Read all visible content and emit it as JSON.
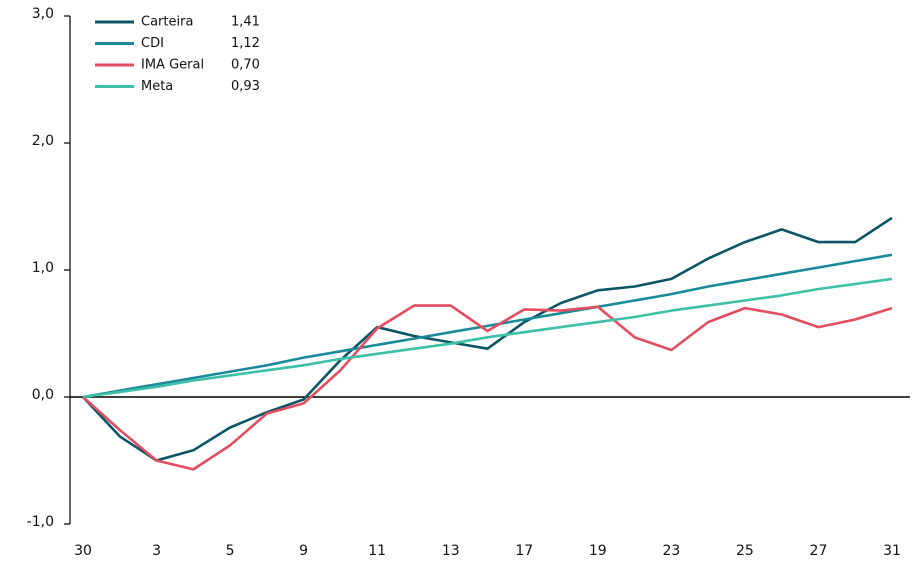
{
  "chart_data": {
    "type": "line",
    "categories": [
      "30",
      null,
      "3",
      null,
      "5",
      null,
      "9",
      null,
      "11",
      null,
      "13",
      null,
      "17",
      null,
      "19",
      null,
      "23",
      null,
      "25",
      null,
      "27",
      null,
      "31"
    ],
    "series": [
      {
        "name": "Carteira",
        "legend_value": "1,41",
        "color": "#0b5566",
        "values": [
          0,
          -0.31,
          -0.5,
          -0.42,
          -0.24,
          -0.12,
          -0.02,
          0.29,
          0.55,
          0.48,
          0.43,
          0.38,
          0.59,
          0.74,
          0.84,
          0.87,
          0.93,
          1.09,
          1.22,
          1.32,
          1.22,
          1.22,
          1.41
        ]
      },
      {
        "name": "CDI",
        "legend_value": "1,12",
        "color": "#1a8a9a",
        "values": [
          0,
          0.05,
          0.1,
          0.15,
          0.2,
          0.25,
          0.31,
          0.36,
          0.41,
          0.46,
          0.51,
          0.56,
          0.61,
          0.66,
          0.71,
          0.76,
          0.81,
          0.87,
          0.92,
          0.97,
          1.02,
          1.07,
          1.12
        ]
      },
      {
        "name": "IMA Geral",
        "legend_value": "0,70",
        "color": "#e34d5f",
        "values": [
          0,
          -0.26,
          -0.5,
          -0.57,
          -0.38,
          -0.13,
          -0.05,
          0.21,
          0.54,
          0.72,
          0.72,
          0.52,
          0.69,
          0.68,
          0.71,
          0.47,
          0.37,
          0.59,
          0.7,
          0.65,
          0.55,
          0.61,
          0.7
        ]
      },
      {
        "name": "Meta",
        "legend_value": "0,93",
        "color": "#3dbfa8",
        "values": [
          0,
          0.04,
          0.08,
          0.13,
          0.17,
          0.21,
          0.25,
          0.3,
          0.34,
          0.38,
          0.42,
          0.47,
          0.51,
          0.55,
          0.59,
          0.63,
          0.68,
          0.72,
          0.76,
          0.8,
          0.85,
          0.89,
          0.93
        ]
      }
    ],
    "ylim": [
      -1,
      3
    ],
    "yticks": [
      {
        "value": -1,
        "label": "-1,0"
      },
      {
        "value": 0,
        "label": "0,0"
      },
      {
        "value": 1,
        "label": "1,0"
      },
      {
        "value": 2,
        "label": "2,0"
      },
      {
        "value": 3,
        "label": "3,0"
      }
    ],
    "legend": "upper left"
  }
}
